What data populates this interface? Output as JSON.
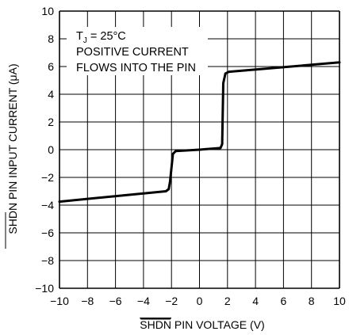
{
  "chart_data": {
    "type": "line",
    "title": "",
    "xlabel_prefix": "SHDN",
    "xlabel_rest": " PIN VOLTAGE (V)",
    "ylabel_prefix": "SHDN",
    "ylabel_rest": " PIN INPUT CURRENT (μA)",
    "xlim": [
      -10,
      10
    ],
    "ylim": [
      -10,
      10
    ],
    "xticks": [
      -10,
      -8,
      -6,
      -4,
      -2,
      0,
      2,
      4,
      6,
      8,
      10
    ],
    "yticks": [
      -10,
      -8,
      -6,
      -4,
      -2,
      0,
      2,
      4,
      6,
      8,
      10
    ],
    "xtick_labels": [
      "−10",
      "−8",
      "−6",
      "−4",
      "−2",
      "0",
      "2",
      "4",
      "6",
      "8",
      "10"
    ],
    "ytick_labels": [
      "−10",
      "−8",
      "−6",
      "−4",
      "−2",
      "0",
      "2",
      "4",
      "6",
      "8",
      "10"
    ],
    "grid": true,
    "annotation": {
      "line1_main": "T",
      "line1_sub": "J",
      "line1_rest": " = 25°C",
      "line2": "POSITIVE CURRENT",
      "line3": "FLOWS INTO THE PIN"
    },
    "series": [
      {
        "x": [
          -10,
          -2.4,
          -2.2,
          -2.1,
          -1.9,
          -1.7,
          0,
          1.5,
          1.62,
          1.7,
          1.85,
          2.1,
          10
        ],
        "y": [
          -3.75,
          -3.0,
          -2.85,
          -2.3,
          -0.3,
          -0.1,
          0.0,
          0.12,
          0.4,
          4.8,
          5.5,
          5.62,
          6.3
        ]
      }
    ]
  }
}
